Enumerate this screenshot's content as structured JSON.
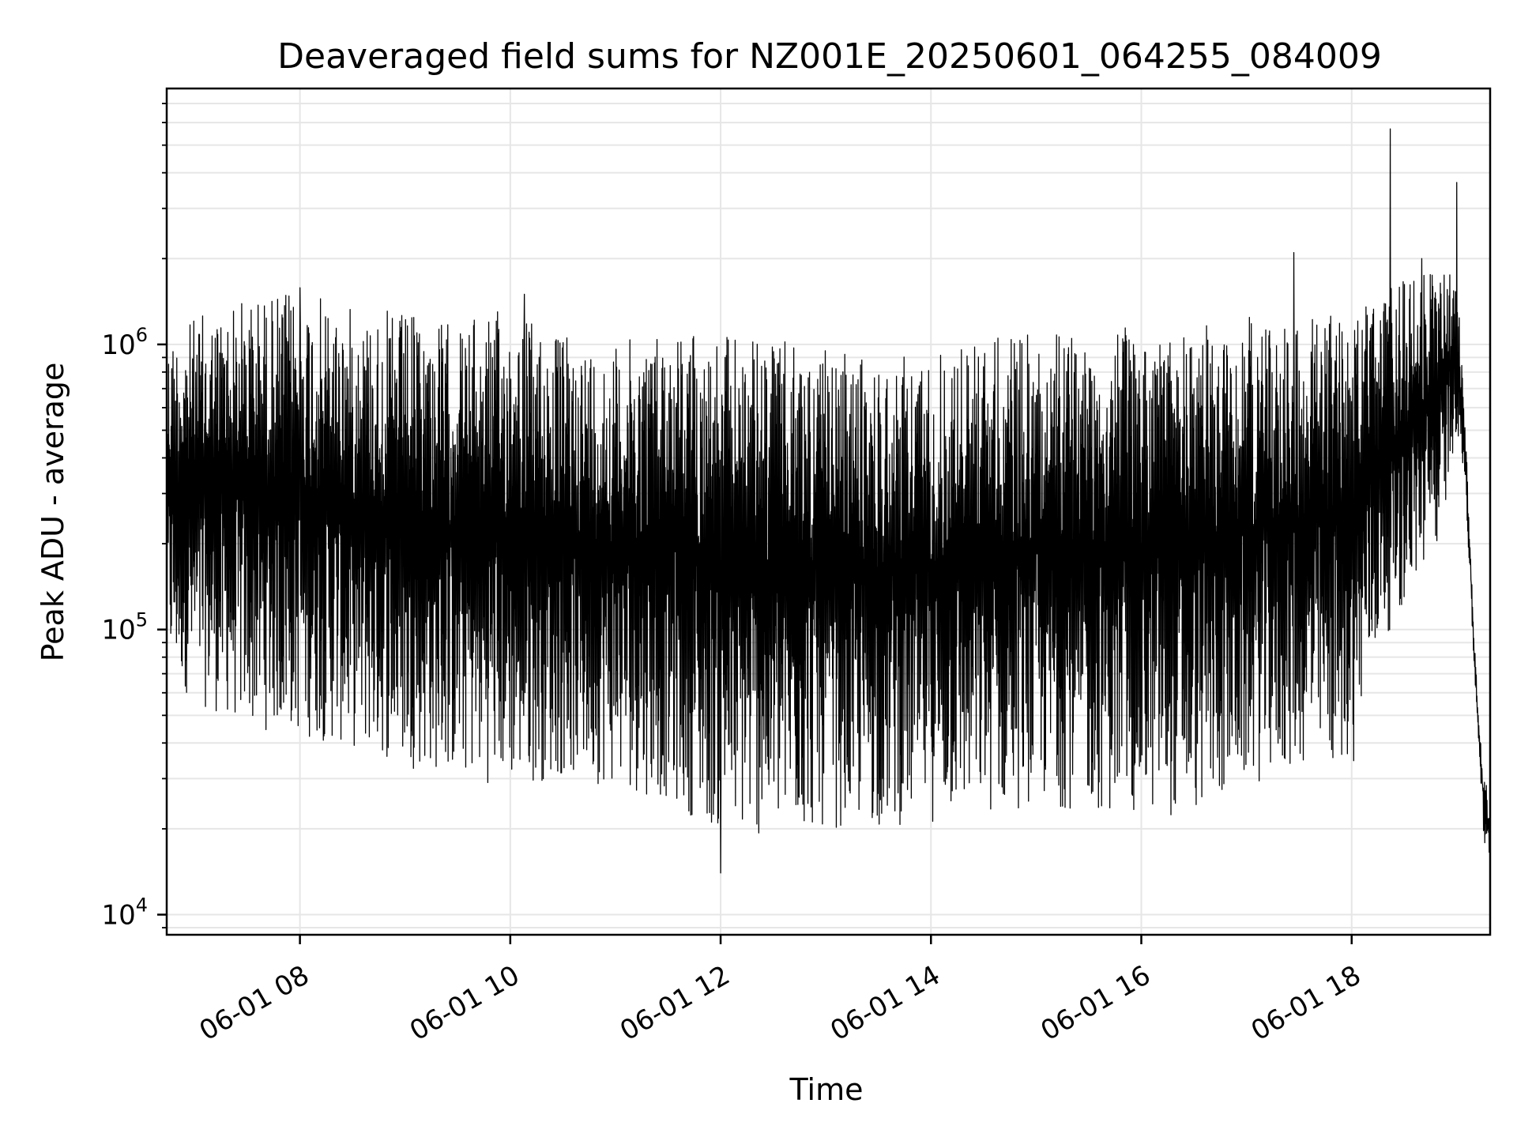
{
  "chart_data": {
    "type": "line",
    "title": "Deaveraged field sums for NZ001E_20250601_064255_084009",
    "xlabel": "Time",
    "ylabel": "Peak ADU - average",
    "x_axis": {
      "kind": "datetime",
      "range": [
        "2025-06-01T06:44:00",
        "2025-06-01T19:19:00"
      ],
      "ticks": [
        {
          "value": "2025-06-01T08:00:00",
          "label": "06-01 08"
        },
        {
          "value": "2025-06-01T10:00:00",
          "label": "06-01 10"
        },
        {
          "value": "2025-06-01T12:00:00",
          "label": "06-01 12"
        },
        {
          "value": "2025-06-01T14:00:00",
          "label": "06-01 14"
        },
        {
          "value": "2025-06-01T16:00:00",
          "label": "06-01 16"
        },
        {
          "value": "2025-06-01T18:00:00",
          "label": "06-01 18"
        }
      ],
      "tick_label_rotation": 30
    },
    "y_axis": {
      "scale": "log",
      "range": [
        8500,
        7900000
      ],
      "ticks": [
        {
          "value": 10000,
          "base": "10",
          "exponent": "4"
        },
        {
          "value": 100000,
          "base": "10",
          "exponent": "5"
        },
        {
          "value": 1000000,
          "base": "10",
          "exponent": "6"
        }
      ]
    },
    "grid": true,
    "line_color": "#000000",
    "grid_color": "#e6e6e6",
    "series": [
      {
        "envelope": [
          {
            "t": "06:45",
            "high": 1100000,
            "low": 70000
          },
          {
            "t": "07:00",
            "high": 1250000,
            "low": 55000
          },
          {
            "t": "07:30",
            "high": 1500000,
            "low": 45000
          },
          {
            "t": "08:00",
            "high": 1550000,
            "low": 42000
          },
          {
            "t": "08:30",
            "high": 1350000,
            "low": 38000
          },
          {
            "t": "09:00",
            "high": 1300000,
            "low": 33000
          },
          {
            "t": "09:30",
            "high": 1200000,
            "low": 30000
          },
          {
            "t": "10:00",
            "high": 1350000,
            "low": 28000
          },
          {
            "t": "10:30",
            "high": 1100000,
            "low": 30000
          },
          {
            "t": "11:00",
            "high": 1000000,
            "low": 28000
          },
          {
            "t": "11:30",
            "high": 1200000,
            "low": 25000
          },
          {
            "t": "12:00",
            "high": 1100000,
            "low": 19000
          },
          {
            "t": "12:30",
            "high": 1050000,
            "low": 18000
          },
          {
            "t": "13:00",
            "high": 950000,
            "low": 20000
          },
          {
            "t": "13:30",
            "high": 900000,
            "low": 20000
          },
          {
            "t": "14:00",
            "high": 950000,
            "low": 21000
          },
          {
            "t": "14:30",
            "high": 1100000,
            "low": 22000
          },
          {
            "t": "15:00",
            "high": 1100000,
            "low": 24000
          },
          {
            "t": "15:30",
            "high": 1150000,
            "low": 23000
          },
          {
            "t": "16:00",
            "high": 1150000,
            "low": 22000
          },
          {
            "t": "16:30",
            "high": 1150000,
            "low": 22000
          },
          {
            "t": "17:00",
            "high": 1250000,
            "low": 28000
          },
          {
            "t": "17:30",
            "high": 1300000,
            "low": 32000
          },
          {
            "t": "18:00",
            "high": 1300000,
            "low": 32000
          },
          {
            "t": "18:15",
            "high": 1500000,
            "low": 85000
          },
          {
            "t": "18:30",
            "high": 1700000,
            "low": 120000
          },
          {
            "t": "18:50",
            "high": 1800000,
            "low": 200000
          },
          {
            "t": "19:00",
            "high": 1800000,
            "low": 500000
          },
          {
            "t": "19:05",
            "high": 500000,
            "low": 300000
          },
          {
            "t": "19:10",
            "high": 90000,
            "low": 70000
          },
          {
            "t": "19:13",
            "high": 45000,
            "low": 35000
          },
          {
            "t": "19:16",
            "high": 30000,
            "low": 15000
          },
          {
            "t": "19:19",
            "high": 25000,
            "low": 16000
          }
        ],
        "spikes": [
          {
            "t": "18:22",
            "value": 5700000
          },
          {
            "t": "19:00",
            "value": 3700000
          },
          {
            "t": "17:27",
            "value": 2100000
          },
          {
            "t": "18:40",
            "value": 2000000
          },
          {
            "t": "10:08",
            "value": 1500000
          },
          {
            "t": "08:00",
            "value": 1580000
          },
          {
            "t": "12:00",
            "value": 14000
          }
        ]
      }
    ]
  }
}
